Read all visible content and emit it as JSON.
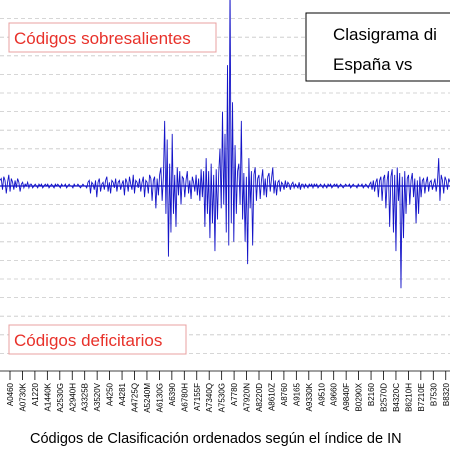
{
  "chart_data": {
    "type": "line",
    "title": "Clasigrama di",
    "subtitle": "España   vs",
    "xlabel": "Códigos de Clasificación ordenados según el índice de IN",
    "ylabel": "",
    "grid": true,
    "ylim": [
      -10,
      10
    ],
    "annotations": {
      "top": "Códigos sobresalientes",
      "bottom": "Códigos deficitarios"
    },
    "tick_labels": [
      "A0460",
      "A0730K",
      "A1220",
      "A1440K",
      "A2530G",
      "A2940H",
      "A3325B",
      "A3520V",
      "A4250",
      "A4281",
      "A4725Q",
      "A5240M",
      "A6130G",
      "A6390",
      "A6780H",
      "A7155F",
      "A7340Q",
      "A7530G",
      "A7780",
      "A7920N",
      "A8220D",
      "A8610Z",
      "A8760",
      "A9165",
      "A9330K",
      "A9510",
      "A9660",
      "A9840F",
      "B0290X",
      "B2160",
      "B2570D",
      "B4320C",
      "B6210H",
      "B7210E",
      "B7530",
      "B8320"
    ],
    "values": [
      0.3,
      0.4,
      -0.2,
      0.5,
      0.3,
      -0.4,
      0.2,
      0.6,
      -0.3,
      0.4,
      0.2,
      -0.2,
      0.3,
      -0.1,
      0.4,
      0.2,
      -0.3,
      0.1,
      0.2,
      -0.1,
      0.1,
      0,
      0.2,
      -0.1,
      0.1,
      0.1,
      -0.1,
      0,
      0.1,
      0,
      -0.1,
      0.1,
      0,
      0.1,
      -0.1,
      0,
      0.1,
      0,
      0.1,
      -0.1,
      0,
      0.1,
      0,
      -0.1,
      0.1,
      0,
      0.1,
      0,
      -0.1,
      0.1,
      0,
      0,
      0.1,
      -0.1,
      0,
      0.1,
      0,
      0,
      -0.1,
      0.1,
      0,
      0,
      0.1,
      0,
      -0.1,
      0,
      0.1,
      0,
      0,
      -0.1,
      0.2,
      0.3,
      -0.4,
      0.2,
      0.1,
      -0.2,
      0.3,
      -0.6,
      0.2,
      0.4,
      -0.3,
      0.1,
      0.2,
      -0.2,
      0.3,
      0.5,
      -0.3,
      0.2,
      -0.4,
      0.3,
      0.2,
      -0.1,
      0.4,
      -0.3,
      0.2,
      0.3,
      -0.2,
      0.1,
      0.3,
      -0.5,
      0.4,
      0.2,
      -0.3,
      0.5,
      0.1,
      -0.2,
      0.6,
      -0.4,
      0.3,
      0.2,
      -0.1,
      0.4,
      -0.3,
      0.2,
      0.5,
      -0.6,
      0.3,
      0.2,
      -0.4,
      0.6,
      0.4,
      -0.8,
      0.3,
      0.5,
      -1.2,
      0.4,
      -0.5,
      0.6,
      1.0,
      -0.8,
      0.5,
      3.5,
      -1.5,
      2.5,
      -3.8,
      1.2,
      -2.5,
      2.8,
      -1.5,
      0.6,
      -2.2,
      1.0,
      -0.5,
      0.8,
      -1.0,
      0.5,
      0.4,
      -0.6,
      0.3,
      0.8,
      -0.4,
      0.3,
      -0.7,
      0.5,
      0.2,
      -0.3,
      0.6,
      -0.5,
      0.4,
      -0.8,
      0.9,
      -0.6,
      0.8,
      -2.2,
      1.5,
      -1.5,
      0.8,
      -2.8,
      1.2,
      -2.0,
      0.6,
      -3.5,
      0.9,
      -1.8,
      0.7,
      2.0,
      -1.2,
      4.0,
      -1.0,
      2.8,
      -2.5,
      6.5,
      -3.2,
      11.0,
      -2.0,
      4.5,
      -3.0,
      2.2,
      -1.5,
      0.8,
      1.2,
      -1.0,
      3.5,
      -1.8,
      0.7,
      -3.0,
      0.5,
      -4.2,
      1.5,
      -1.2,
      0.8,
      -3.2,
      0.6,
      1.0,
      -0.8,
      0.4,
      0.6,
      -0.7,
      0.3,
      0.9,
      -0.5,
      0.4,
      -0.6,
      0.5,
      0.7,
      -0.3,
      0.4,
      1.0,
      -0.4,
      0.3,
      -0.5,
      0.2,
      0.3,
      -0.3,
      0.2,
      0.1,
      -0.2,
      0.3,
      -0.1,
      0.2,
      0.1,
      -0.2,
      0.1,
      0.2,
      -0.1,
      0.1,
      0,
      -0.1,
      0.2,
      -0.2,
      0.1,
      0.1,
      -0.1,
      0.1,
      0,
      -0.1,
      0.1,
      0,
      0.1,
      -0.1,
      0.1,
      0,
      0.1,
      -0.1,
      0,
      0.1,
      0,
      -0.1,
      0.1,
      0,
      -0.1,
      0.1,
      0,
      0.1,
      -0.1,
      0,
      0.1,
      0,
      0.1,
      -0.1,
      0,
      0.1,
      0,
      -0.1,
      0,
      0.1,
      0,
      0,
      0.1,
      -0.1,
      0,
      0.1,
      0,
      0,
      -0.1,
      0.1,
      0,
      0,
      0.1,
      -0.1,
      0,
      0.1,
      0,
      -0.1,
      0.1,
      0.2,
      -0.2,
      0.3,
      -0.3,
      0.2,
      0.4,
      -0.6,
      0.3,
      0.5,
      -0.8,
      0.4,
      0.6,
      -1.2,
      0.3,
      0.8,
      -2.2,
      0.5,
      0.9,
      -2.5,
      0.6,
      -3.5,
      1.0,
      -0.8,
      0.7,
      -5.5,
      0.5,
      -2.8,
      0.8,
      -1.5,
      0.4,
      0.6,
      -1.0,
      0.3,
      0.7,
      -0.6,
      0.4,
      -2.0,
      0.3,
      -1.5,
      0.5,
      -0.6,
      0.3,
      0.4,
      -0.4,
      0.2,
      0.5,
      -0.3,
      0.2,
      0.3,
      -0.2,
      0.1,
      0.4,
      -0.3,
      0.2,
      1.5,
      -0.8,
      0.6,
      0.3,
      -0.4,
      0.5,
      0.3,
      -0.2,
      0.4,
      0.2
    ]
  }
}
